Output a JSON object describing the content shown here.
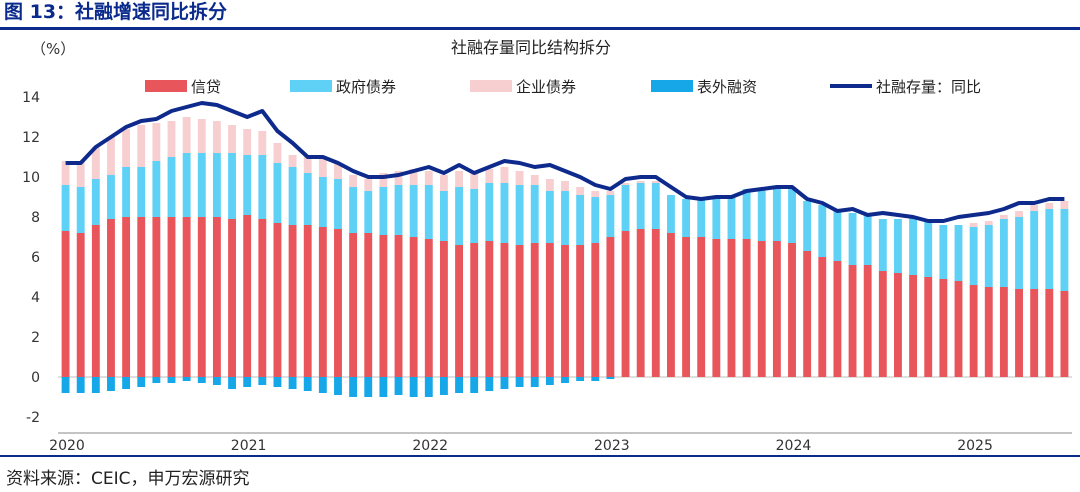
{
  "figure": {
    "title": "图 13：社融增速同比拆分",
    "source": "资料来源：CEIC，申万宏源研究"
  },
  "chart_data": {
    "type": "bar",
    "title": "社融存量同比结构拆分",
    "ylabel": "（%）",
    "xlabel": "",
    "ylim": [
      -2,
      14
    ],
    "yticks": [
      "-2",
      "0",
      "2",
      "4",
      "6",
      "8",
      "10",
      "12",
      "14"
    ],
    "xtick_labels": [
      "2020",
      "2021",
      "2022",
      "2023",
      "2024",
      "2025"
    ],
    "stacked": true,
    "grid": false,
    "legend_position": "top",
    "colors": {
      "credit": "#e8555a",
      "gov_bonds": "#5fd1f7",
      "corp_bonds": "#f8cfd1",
      "off_balance": "#16a7e8",
      "line": "#0d2a8c"
    },
    "legend": [
      {
        "label": "信贷",
        "key": "credit",
        "kind": "bar"
      },
      {
        "label": "政府债券",
        "key": "gov_bonds",
        "kind": "bar"
      },
      {
        "label": "企业债券",
        "key": "corp_bonds",
        "kind": "bar"
      },
      {
        "label": "表外融资",
        "key": "off_balance",
        "kind": "bar"
      },
      {
        "label": "社融存量：同比",
        "key": "line",
        "kind": "line"
      }
    ],
    "x": [
      "2020-01",
      "2020-02",
      "2020-03",
      "2020-04",
      "2020-05",
      "2020-06",
      "2020-07",
      "2020-08",
      "2020-09",
      "2020-10",
      "2020-11",
      "2020-12",
      "2021-01",
      "2021-02",
      "2021-03",
      "2021-04",
      "2021-05",
      "2021-06",
      "2021-07",
      "2021-08",
      "2021-09",
      "2021-10",
      "2021-11",
      "2021-12",
      "2022-01",
      "2022-02",
      "2022-03",
      "2022-04",
      "2022-05",
      "2022-06",
      "2022-07",
      "2022-08",
      "2022-09",
      "2022-10",
      "2022-11",
      "2022-12",
      "2023-01",
      "2023-02",
      "2023-03",
      "2023-04",
      "2023-05",
      "2023-06",
      "2023-07",
      "2023-08",
      "2023-09",
      "2023-10",
      "2023-11",
      "2023-12",
      "2024-01",
      "2024-02",
      "2024-03",
      "2024-04",
      "2024-05",
      "2024-06",
      "2024-07",
      "2024-08",
      "2024-09",
      "2024-10",
      "2024-11",
      "2024-12",
      "2025-01",
      "2025-02",
      "2025-03",
      "2025-04",
      "2025-05",
      "2025-06",
      "2025-07"
    ],
    "series": [
      {
        "name": "信贷",
        "key": "credit",
        "values": [
          7.3,
          7.2,
          7.6,
          7.9,
          8.0,
          8.0,
          8.0,
          8.0,
          8.0,
          8.0,
          8.0,
          7.9,
          8.1,
          7.9,
          7.7,
          7.6,
          7.6,
          7.5,
          7.4,
          7.2,
          7.2,
          7.1,
          7.1,
          7.0,
          6.9,
          6.8,
          6.6,
          6.7,
          6.8,
          6.7,
          6.6,
          6.7,
          6.7,
          6.6,
          6.6,
          6.7,
          7.0,
          7.3,
          7.4,
          7.4,
          7.2,
          7.0,
          7.0,
          6.9,
          6.9,
          6.9,
          6.8,
          6.8,
          6.7,
          6.3,
          6.0,
          5.8,
          5.6,
          5.6,
          5.3,
          5.2,
          5.1,
          5.0,
          4.9,
          4.8,
          4.6,
          4.5,
          4.5,
          4.4,
          4.4,
          4.4,
          4.3
        ]
      },
      {
        "name": "政府债券",
        "key": "gov_bonds",
        "values": [
          2.3,
          2.3,
          2.3,
          2.2,
          2.5,
          2.5,
          2.8,
          3.0,
          3.2,
          3.2,
          3.2,
          3.3,
          3.0,
          3.2,
          3.0,
          2.9,
          2.6,
          2.5,
          2.5,
          2.3,
          2.1,
          2.4,
          2.5,
          2.6,
          2.7,
          2.5,
          2.9,
          2.7,
          2.9,
          3.0,
          3.0,
          2.9,
          2.6,
          2.7,
          2.5,
          2.3,
          2.1,
          2.3,
          2.3,
          2.3,
          1.9,
          1.9,
          1.9,
          2.0,
          2.2,
          2.5,
          2.6,
          2.7,
          2.8,
          2.5,
          2.6,
          2.6,
          2.6,
          2.6,
          2.6,
          2.7,
          2.9,
          2.8,
          2.7,
          2.8,
          2.9,
          3.1,
          3.4,
          3.6,
          3.9,
          4.0,
          4.1
        ]
      },
      {
        "name": "企业债券",
        "key": "corp_bonds",
        "values": [
          1.2,
          1.3,
          1.6,
          1.9,
          1.9,
          2.1,
          1.9,
          1.8,
          1.8,
          1.7,
          1.6,
          1.4,
          1.3,
          1.2,
          1.0,
          0.6,
          0.8,
          0.9,
          0.8,
          0.6,
          0.6,
          0.7,
          0.7,
          0.8,
          0.7,
          0.8,
          0.8,
          0.8,
          0.7,
          0.8,
          0.7,
          0.5,
          0.6,
          0.5,
          0.4,
          0.3,
          0.2,
          0.1,
          0.1,
          0.1,
          0.0,
          0.0,
          0.0,
          0.0,
          0.0,
          0.0,
          0.0,
          0.0,
          0.0,
          0.0,
          0.0,
          0.0,
          0.0,
          0.0,
          0.0,
          0.0,
          0.0,
          0.0,
          0.0,
          0.0,
          0.2,
          0.2,
          0.2,
          0.3,
          0.3,
          0.3,
          0.4
        ]
      },
      {
        "name": "表外融资",
        "key": "off_balance",
        "values": [
          -0.8,
          -0.8,
          -0.8,
          -0.7,
          -0.6,
          -0.5,
          -0.3,
          -0.3,
          -0.2,
          -0.3,
          -0.4,
          -0.6,
          -0.5,
          -0.4,
          -0.5,
          -0.6,
          -0.7,
          -0.8,
          -0.9,
          -1.0,
          -1.0,
          -1.0,
          -0.9,
          -1.0,
          -1.0,
          -0.9,
          -0.8,
          -0.8,
          -0.7,
          -0.6,
          -0.5,
          -0.5,
          -0.4,
          -0.3,
          -0.2,
          -0.2,
          -0.1,
          0.0,
          0.0,
          0.0,
          0.0,
          0.0,
          0.0,
          0.0,
          0.0,
          0.0,
          0.0,
          0.0,
          0.0,
          0.0,
          0.0,
          0.0,
          0.0,
          0.0,
          0.0,
          0.0,
          0.0,
          0.0,
          0.0,
          0.0,
          0.0,
          0.0,
          0.0,
          0.0,
          0.0,
          0.0,
          0.0
        ]
      },
      {
        "name": "社融存量：同比",
        "key": "line",
        "kind": "line",
        "values": [
          10.7,
          10.7,
          11.5,
          12.0,
          12.5,
          12.8,
          12.9,
          13.3,
          13.5,
          13.7,
          13.6,
          13.3,
          13.0,
          13.3,
          12.3,
          11.7,
          11.0,
          11.0,
          10.7,
          10.3,
          10.0,
          10.0,
          10.1,
          10.3,
          10.5,
          10.2,
          10.6,
          10.2,
          10.5,
          10.8,
          10.7,
          10.5,
          10.6,
          10.3,
          10.0,
          9.6,
          9.4,
          9.9,
          10.0,
          10.0,
          9.5,
          9.0,
          8.9,
          9.0,
          9.0,
          9.3,
          9.4,
          9.5,
          9.5,
          8.9,
          8.7,
          8.3,
          8.4,
          8.1,
          8.2,
          8.1,
          8.0,
          7.8,
          7.8,
          8.0,
          8.1,
          8.2,
          8.4,
          8.7,
          8.7,
          8.9,
          8.9
        ]
      }
    ]
  }
}
